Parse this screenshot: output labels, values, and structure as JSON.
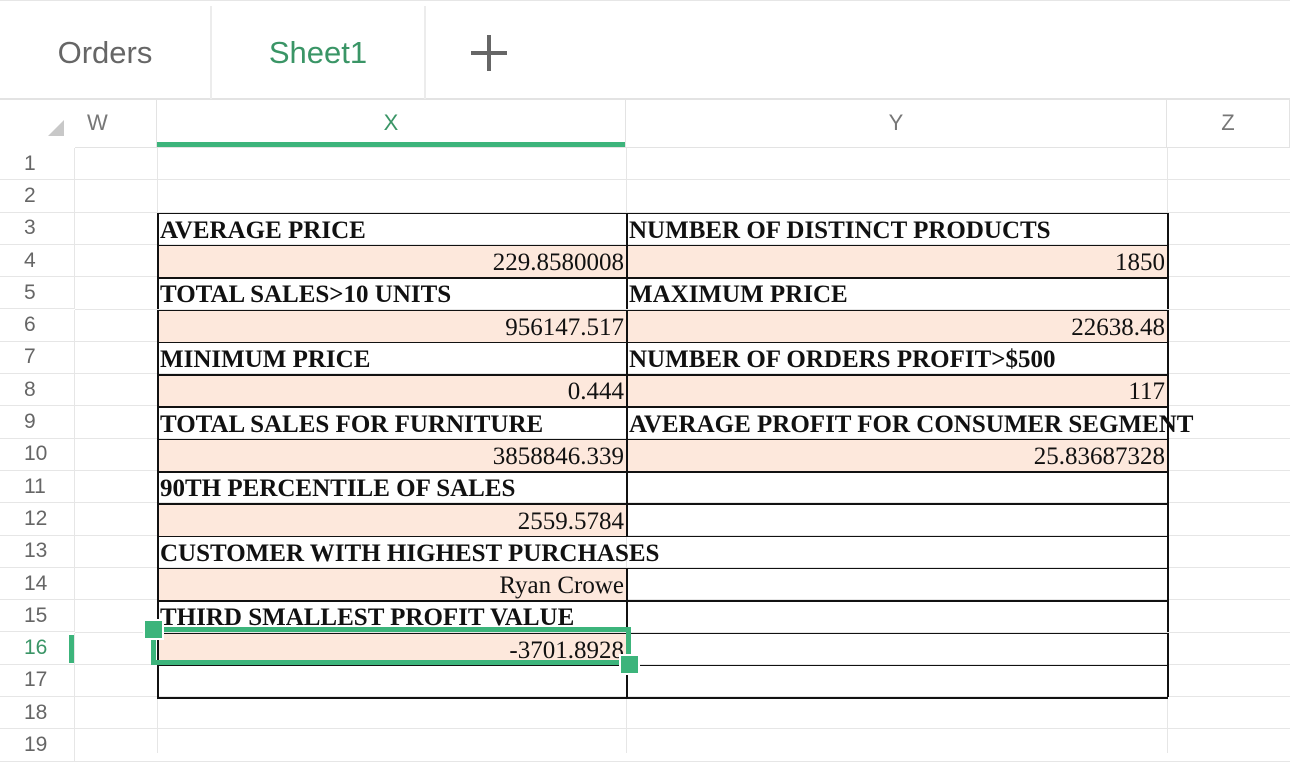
{
  "tabs": [
    {
      "label": "Orders",
      "active": false
    },
    {
      "label": "Sheet1",
      "active": true
    }
  ],
  "add_tab_icon": "plus-icon",
  "columns": [
    "W",
    "X",
    "Y",
    "Z"
  ],
  "selected_column": "X",
  "row_numbers": [
    "1",
    "2",
    "3",
    "4",
    "5",
    "6",
    "7",
    "8",
    "9",
    "10",
    "11",
    "12",
    "13",
    "14",
    "15",
    "16",
    "17",
    "18",
    "19"
  ],
  "selected_row": "16",
  "selected_cell": "X16",
  "colors": {
    "accent": "#3cb47b",
    "value_fill": "#fde8dc"
  },
  "table": [
    {
      "row": 3,
      "x": {
        "text": "AVERAGE PRICE",
        "kind": "label"
      },
      "y": {
        "text": "NUMBER OF DISTINCT PRODUCTS",
        "kind": "label"
      }
    },
    {
      "row": 4,
      "x": {
        "text": "229.8580008",
        "kind": "value"
      },
      "y": {
        "text": "1850",
        "kind": "value"
      }
    },
    {
      "row": 5,
      "x": {
        "text": "TOTAL SALES>10 UNITS",
        "kind": "label"
      },
      "y": {
        "text": "MAXIMUM PRICE",
        "kind": "label"
      }
    },
    {
      "row": 6,
      "x": {
        "text": "956147.517",
        "kind": "value"
      },
      "y": {
        "text": "22638.48",
        "kind": "value"
      }
    },
    {
      "row": 7,
      "x": {
        "text": "MINIMUM PRICE",
        "kind": "label"
      },
      "y": {
        "text": "NUMBER OF ORDERS PROFIT>$500",
        "kind": "label"
      }
    },
    {
      "row": 8,
      "x": {
        "text": "0.444",
        "kind": "value"
      },
      "y": {
        "text": "117",
        "kind": "value"
      }
    },
    {
      "row": 9,
      "x": {
        "text": "TOTAL SALES FOR FURNITURE",
        "kind": "label"
      },
      "y": {
        "text": "AVERAGE PROFIT FOR CONSUMER SEGMENT",
        "kind": "label"
      }
    },
    {
      "row": 10,
      "x": {
        "text": "3858846.339",
        "kind": "value"
      },
      "y": {
        "text": "25.83687328",
        "kind": "value"
      }
    },
    {
      "row": 11,
      "x": {
        "text": "90TH PERCENTILE OF SALES",
        "kind": "label"
      },
      "y": {
        "text": "",
        "kind": "empty"
      }
    },
    {
      "row": 12,
      "x": {
        "text": "2559.5784",
        "kind": "value"
      },
      "y": {
        "text": "",
        "kind": "empty"
      }
    },
    {
      "row": 13,
      "x": {
        "text": "CUSTOMER WITH HIGHEST PURCHASES",
        "kind": "label",
        "merged": true
      },
      "y": {
        "text": "",
        "kind": "merged"
      }
    },
    {
      "row": 14,
      "x": {
        "text": "Ryan Crowe",
        "kind": "value"
      },
      "y": {
        "text": "",
        "kind": "empty"
      }
    },
    {
      "row": 15,
      "x": {
        "text": "THIRD SMALLEST PROFIT VALUE",
        "kind": "label"
      },
      "y": {
        "text": "",
        "kind": "empty"
      }
    },
    {
      "row": 16,
      "x": {
        "text": "-3701.8928",
        "kind": "value"
      },
      "y": {
        "text": "",
        "kind": "empty"
      }
    },
    {
      "row": 17,
      "x": {
        "text": "",
        "kind": "empty"
      },
      "y": {
        "text": "",
        "kind": "empty"
      }
    }
  ]
}
